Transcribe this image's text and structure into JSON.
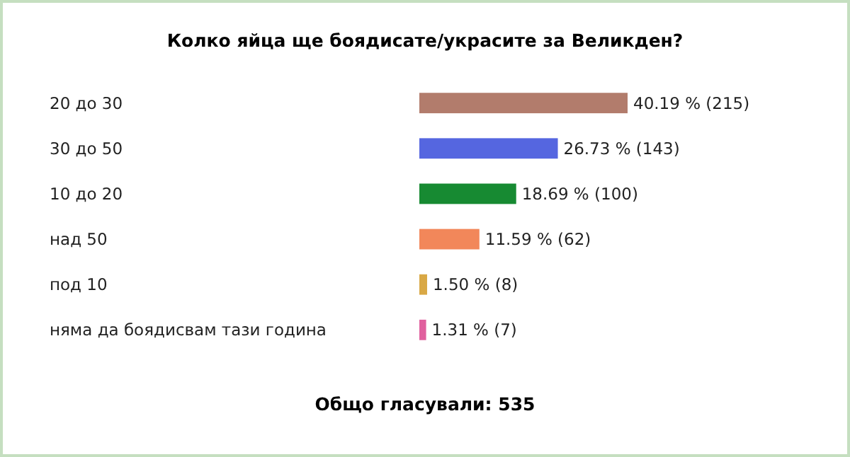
{
  "chart_data": {
    "type": "bar",
    "orientation": "horizontal",
    "title": "Колко яйца ще боядисате/украсите за Великден?",
    "categories": [
      "20 до 30",
      "30 до 50",
      "10 до 20",
      "над 50",
      "под 10",
      "няма да боядисвам тази година"
    ],
    "values": [
      40.19,
      26.73,
      18.69,
      11.59,
      1.5,
      1.31
    ],
    "colors": [
      "#b27c6c",
      "#5566e0",
      "#178a32",
      "#f2875a",
      "#d9a845",
      "#e0609e"
    ],
    "value_labels": [
      "40.19 % (215)",
      "26.73 % (143)",
      "18.69 % (100)",
      "11.59 % (62)",
      "1.50 % (8)",
      "1.31 % (7)"
    ],
    "annotations": [
      "Общо гласували: 535"
    ]
  }
}
